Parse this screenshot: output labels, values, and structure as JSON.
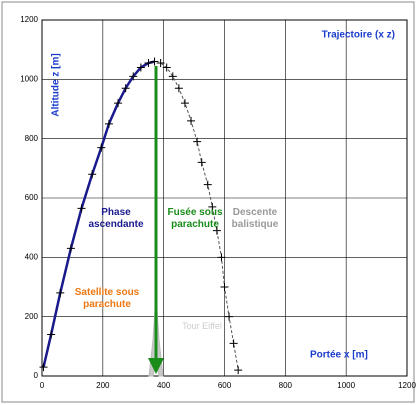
{
  "chart_data": {
    "type": "line",
    "title": "Trajectoire (x z)",
    "xlabel": "Portée x [m]",
    "ylabel": "Altitude z [m]",
    "xlim": [
      0,
      1200
    ],
    "ylim": [
      0,
      1200
    ],
    "xticks": [
      0,
      200,
      400,
      600,
      800,
      1000,
      1200
    ],
    "yticks": [
      0,
      200,
      400,
      600,
      800,
      1000,
      1200
    ],
    "grid": true,
    "series": [
      {
        "color": "#1a1a8c",
        "x": [
          5,
          30,
          60,
          95,
          130,
          165,
          195,
          220,
          250,
          275,
          300,
          325,
          350,
          370
        ],
        "values": [
          30,
          140,
          280,
          430,
          565,
          680,
          770,
          850,
          920,
          970,
          1010,
          1040,
          1055,
          1060
        ]
      },
      {
        "color": "#555555",
        "x": [
          390,
          410,
          430,
          450,
          470,
          490,
          510,
          525,
          545,
          560,
          575,
          590,
          600,
          615,
          630,
          645
        ],
        "values": [
          1055,
          1040,
          1010,
          970,
          920,
          860,
          790,
          720,
          645,
          570,
          490,
          400,
          300,
          200,
          110,
          20
        ]
      }
    ],
    "annotations": [
      "Phase ascendante",
      "Fusée sous parachute",
      "Descente balistique",
      "Satellite sous parachute",
      "Tour Eiffel"
    ]
  }
}
